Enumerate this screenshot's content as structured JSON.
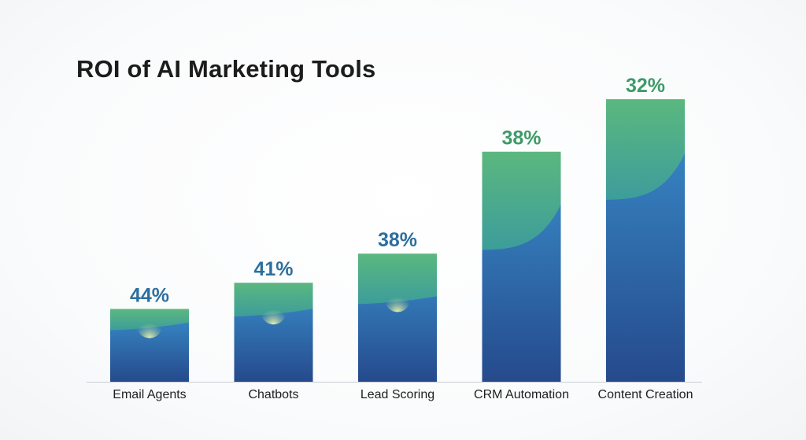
{
  "chart_data": {
    "type": "bar",
    "title": "ROI of AI Marketing Tools",
    "categories": [
      "Email Agents",
      "Chatbots",
      "Lead Scoring",
      "CRM Automation",
      "Content Creation"
    ],
    "values": [
      44,
      41,
      38,
      38,
      32
    ],
    "value_labels": [
      "44%",
      "41%",
      "38%",
      "38%",
      "32%"
    ],
    "bar_fill_levels": [
      0.25,
      0.34,
      0.44,
      0.79,
      0.97
    ],
    "xlabel": "",
    "ylabel": "",
    "grid": false,
    "legend": "none",
    "colors": {
      "bar_top": "#5cb97c",
      "bar_mid": "#3a8fcc",
      "bar_bottom": "#254a8c",
      "label_blue": "#2d6f9e",
      "label_green": "#3e9a68",
      "baseline": "#c9ced4"
    }
  }
}
